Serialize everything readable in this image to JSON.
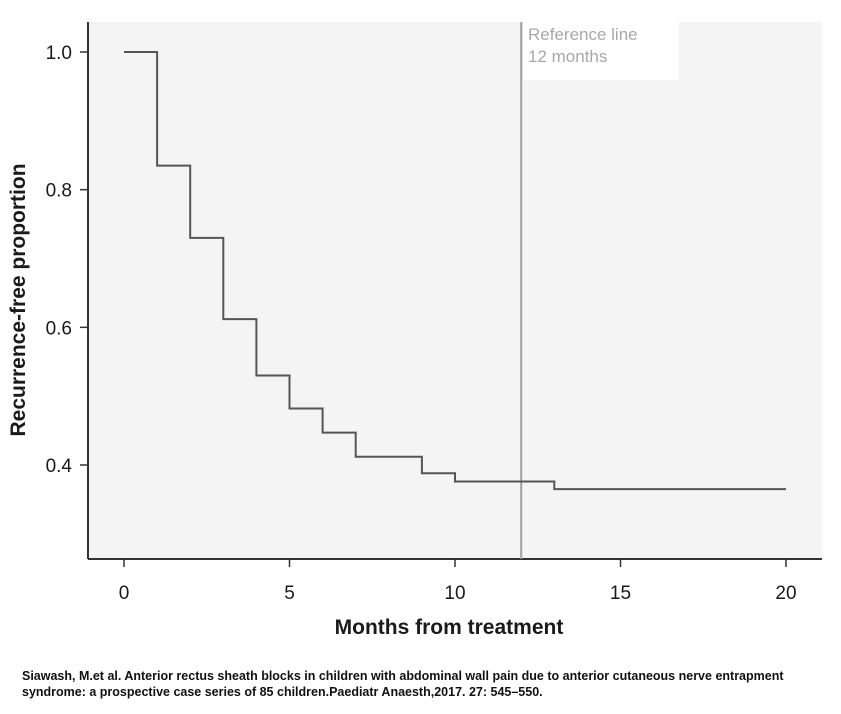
{
  "chart_data": {
    "type": "line",
    "subtype": "step",
    "xlabel": "Months from treatment",
    "ylabel": "Recurrence-free proportion",
    "xlim": [
      -1,
      21
    ],
    "ylim": [
      0.27,
      1.05
    ],
    "x_ticks": [
      0,
      5,
      10,
      15,
      20
    ],
    "y_ticks": [
      0.4,
      0.6,
      0.8,
      1.0
    ],
    "x_tick_labels": [
      "0",
      "5",
      "10",
      "15",
      "20"
    ],
    "y_tick_labels": [
      "0.4",
      "0.6",
      "0.8",
      "1.0"
    ],
    "grid": false,
    "colors": {
      "plot_background": "#f4f4f4",
      "line": "#555555",
      "reference_line": "#a0a0a0",
      "axis": "#333333"
    },
    "series": [
      {
        "x": [
          0,
          1,
          2,
          3,
          4,
          5,
          6,
          7,
          9,
          10,
          13,
          20
        ],
        "y": [
          1.0,
          0.835,
          0.73,
          0.612,
          0.53,
          0.482,
          0.447,
          0.412,
          0.388,
          0.376,
          0.365,
          0.365
        ]
      }
    ],
    "reference_line": {
      "x": 12,
      "label_line1": "Reference line",
      "label_line2": "12 months"
    }
  },
  "citation": "Siawash, M.et al. Anterior rectus sheath blocks in children with abdominal wall pain due to anterior cutaneous nerve entrapment syndrome: a prospective case series of 85 children.Paediatr Anaesth,2017.  27: 545–550."
}
